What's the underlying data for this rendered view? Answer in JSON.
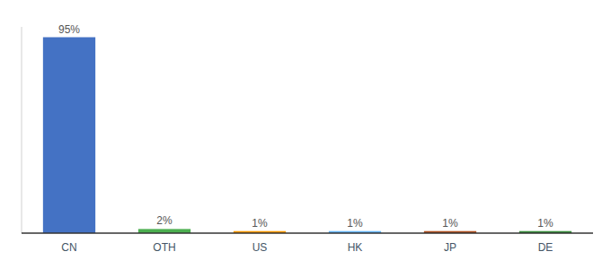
{
  "chart_data": {
    "type": "bar",
    "categories": [
      "CN",
      "OTH",
      "US",
      "HK",
      "JP",
      "DE"
    ],
    "values": [
      95,
      2,
      1,
      1,
      1,
      1
    ],
    "value_labels": [
      "95%",
      "2%",
      "1%",
      "1%",
      "1%",
      "1%"
    ],
    "colors": [
      "#4472C4",
      "#4CAF50",
      "#FF9800",
      "#64B5F6",
      "#B05020",
      "#388E3C"
    ],
    "ylim": [
      0,
      100
    ],
    "data_labels": true,
    "tick_labels": "x"
  }
}
